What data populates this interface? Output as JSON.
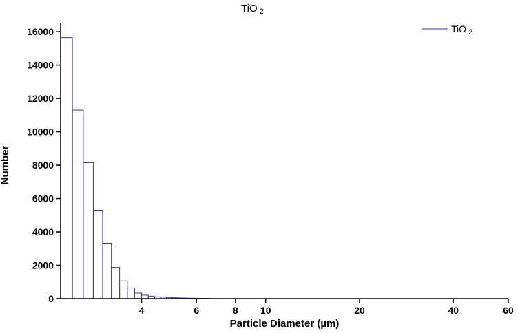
{
  "chart_data": {
    "type": "bar",
    "title": "TiO",
    "title_subscript": "2",
    "xlabel": "Particle Diameter (µm)",
    "ylabel": "Number",
    "x_scale": "log",
    "xlim": [
      2.2,
      60
    ],
    "ylim": [
      0,
      16500
    ],
    "x_ticks": [
      4,
      6,
      8,
      10,
      20,
      40,
      60
    ],
    "x_tick_labels": [
      "4",
      "6",
      "8",
      "10",
      "20",
      "40",
      "60"
    ],
    "y_ticks": [
      0,
      2000,
      4000,
      6000,
      8000,
      10000,
      12000,
      14000,
      16000
    ],
    "y_tick_labels": [
      "0",
      "2000",
      "4000",
      "6000",
      "8000",
      "10000",
      "12000",
      "14000",
      "16000"
    ],
    "legend": {
      "position": "top-right",
      "entries": [
        {
          "label": "TiO",
          "subscript": "2"
        }
      ]
    },
    "grid": false,
    "color": "#3333cc",
    "bin_edges": [
      2.2,
      2.4,
      2.6,
      2.8,
      3.0,
      3.2,
      3.4,
      3.6,
      3.8,
      4.0,
      4.2,
      4.4,
      4.6,
      4.8,
      5.0,
      5.2,
      5.4,
      5.6,
      5.8,
      6.0,
      6.2,
      6.4,
      6.6
    ],
    "series": [
      {
        "name": "TiO2",
        "values": [
          15650,
          11300,
          8150,
          5300,
          3320,
          1870,
          1060,
          640,
          330,
          210,
          150,
          110,
          90,
          70,
          55,
          45,
          35,
          30,
          25,
          20,
          15,
          10
        ]
      }
    ]
  }
}
